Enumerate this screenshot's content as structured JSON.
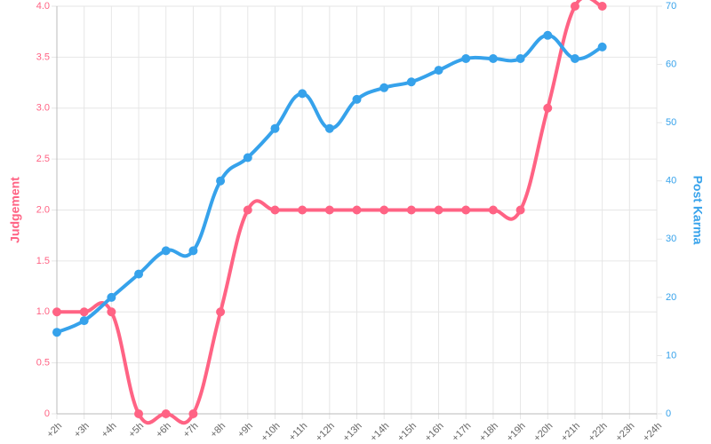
{
  "chart_data": {
    "type": "line",
    "categories": [
      "+2h",
      "+3h",
      "+4h",
      "+5h",
      "+6h",
      "+7h",
      "+8h",
      "+9h",
      "+10h",
      "+11h",
      "+12h",
      "+13h",
      "+14h",
      "+15h",
      "+16h",
      "+17h",
      "+18h",
      "+19h",
      "+20h",
      "+21h",
      "+22h",
      "+23h",
      "+24h"
    ],
    "series": [
      {
        "name": "Judgement",
        "color": "#ff6384",
        "values": [
          1,
          1,
          1,
          0,
          0,
          0,
          1,
          2,
          2,
          2,
          2,
          2,
          2,
          2,
          2,
          2,
          2,
          2,
          3,
          4,
          4,
          null,
          null
        ]
      },
      {
        "name": "Post Karma",
        "color": "#36a2eb",
        "axis": "y2",
        "values": [
          14,
          16,
          20,
          24,
          28,
          28,
          40,
          44,
          49,
          55,
          49,
          54,
          56,
          57,
          59,
          61,
          61,
          61,
          65,
          61,
          63,
          null,
          null
        ]
      }
    ],
    "ylabel": "Judgement",
    "y2label": "Post Karma",
    "ylim": [
      0,
      4
    ],
    "yticks": [
      0,
      0.5,
      {
        "value": 1,
        "label": "1.0"
      },
      1.5,
      {
        "value": 2,
        "label": "2.0"
      },
      2.5,
      {
        "value": 3,
        "label": "3.0"
      },
      3.5,
      {
        "value": 4,
        "label": "4.0"
      }
    ],
    "y2lim": [
      0,
      70
    ],
    "y2ticks": [
      0,
      10,
      20,
      30,
      40,
      50,
      60,
      70
    ],
    "grid": true
  }
}
